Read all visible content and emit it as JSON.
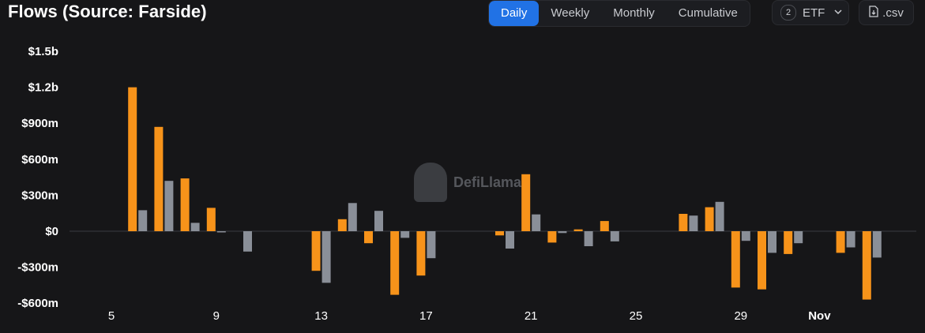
{
  "header": {
    "title": "Flows (Source: Farside)",
    "tabs": [
      {
        "label": "Daily",
        "active": true
      },
      {
        "label": "Weekly",
        "active": false
      },
      {
        "label": "Monthly",
        "active": false
      },
      {
        "label": "Cumulative",
        "active": false
      }
    ],
    "etf_count": "2",
    "etf_label": "ETF",
    "csv_label": ".csv"
  },
  "watermark": "DefiLlama",
  "colors": {
    "background": "#161618",
    "accent": "#2172e5",
    "series_orange": "#f7931a",
    "series_gray": "#8a8f98"
  },
  "chart_data": {
    "type": "bar",
    "title": "Flows (Source: Farside)",
    "xlabel": "",
    "ylabel": "",
    "ylim": [
      -600,
      1500
    ],
    "y_ticks": [
      {
        "value": 1500,
        "label": "$1.5b"
      },
      {
        "value": 1200,
        "label": "$1.2b"
      },
      {
        "value": 900,
        "label": "$900m"
      },
      {
        "value": 600,
        "label": "$600m"
      },
      {
        "value": 300,
        "label": "$300m"
      },
      {
        "value": 0,
        "label": "$0"
      },
      {
        "value": -300,
        "label": "-$300m"
      },
      {
        "value": -600,
        "label": "-$600m"
      }
    ],
    "x_ticks": [
      {
        "day": 5,
        "label": "5",
        "bold": false
      },
      {
        "day": 9,
        "label": "9",
        "bold": false
      },
      {
        "day": 13,
        "label": "13",
        "bold": false
      },
      {
        "day": 17,
        "label": "17",
        "bold": false
      },
      {
        "day": 21,
        "label": "21",
        "bold": false
      },
      {
        "day": 25,
        "label": "25",
        "bold": false
      },
      {
        "day": 29,
        "label": "29",
        "bold": false
      },
      {
        "day": 32,
        "label": "Nov",
        "bold": true
      }
    ],
    "categories": [
      5,
      6,
      7,
      8,
      9,
      10,
      11,
      12,
      13,
      14,
      15,
      16,
      17,
      18,
      19,
      20,
      21,
      22,
      23,
      24,
      25,
      26,
      27,
      28,
      29,
      30,
      31,
      32,
      33,
      34
    ],
    "series": [
      {
        "color": "#f7931a",
        "values": [
          0,
          1200,
          870,
          440,
          195,
          0,
          0,
          0,
          -330,
          100,
          -100,
          -530,
          -370,
          0,
          0,
          -35,
          475,
          -95,
          15,
          85,
          0,
          0,
          145,
          200,
          -470,
          -485,
          -190,
          0,
          -180,
          -570
        ]
      },
      {
        "color": "#8a8f98",
        "values": [
          0,
          175,
          420,
          70,
          -10,
          -170,
          0,
          0,
          -430,
          235,
          170,
          -55,
          -225,
          0,
          0,
          -145,
          140,
          -15,
          -125,
          -85,
          0,
          0,
          130,
          245,
          -80,
          -180,
          -100,
          0,
          -135,
          -220
        ]
      }
    ]
  }
}
